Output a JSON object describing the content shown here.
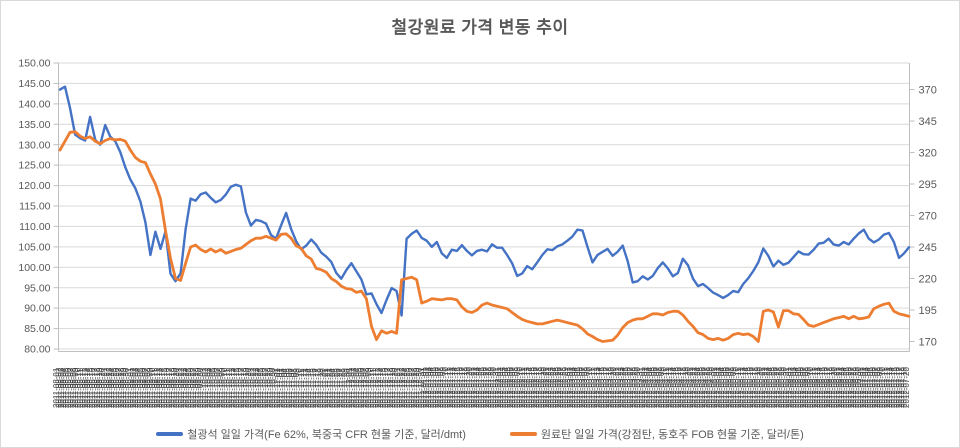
{
  "chart_data": {
    "type": "line",
    "title": "철강원료 가격 변동 추이",
    "legend_position": "bottom",
    "grid": "horizontal-only",
    "colors": {
      "gridline": "#d9d9d9",
      "axis_line": "#bfbfbf",
      "axis_text": "#595959",
      "x_label_band": "#3f3f3f",
      "series_iron_ore": "#4472c4",
      "series_coking_coal": "#ed7d31"
    },
    "left_axis": {
      "min": 80,
      "max": 150,
      "step": 5,
      "tick_labels": [
        "150.00",
        "145.00",
        "140.00",
        "135.00",
        "130.00",
        "125.00",
        "120.00",
        "115.00",
        "110.00",
        "105.00",
        "100.00",
        "95.00",
        "90.00",
        "85.00",
        "80.00"
      ]
    },
    "right_axis": {
      "min": 170,
      "max": 370,
      "step": 25,
      "tick_labels": [
        "370",
        "345",
        "320",
        "295",
        "270",
        "245",
        "220",
        "195",
        "170"
      ]
    },
    "x_axis": {
      "labels_legible": false,
      "style": "daily date labels rotated 90°, heavily overlapping into a dark band",
      "approx_label_count": 355,
      "assumed_start_date": "2011-08-01",
      "assumed_interval_days": 1
    },
    "series": [
      {
        "name": "철광석 일일 가격(Fe 62%, 북중국 CFR 현물 기준, 달러/dmt)",
        "axis": "left",
        "color": "#4472c4",
        "values": [
          143.5,
          144.2,
          139,
          132.5,
          131.6,
          131,
          136.8,
          131.2,
          130,
          134.8,
          132,
          130.8,
          128.2,
          124.5,
          121.5,
          119.3,
          116.1,
          111,
          103,
          108.7,
          104.5,
          108.8,
          98.4,
          96.6,
          98.5,
          109.3,
          116.8,
          116.3,
          117.9,
          118.3,
          117,
          115.9,
          116.5,
          117.8,
          119.7,
          120.2,
          119.8,
          113.4,
          110.2,
          111.6,
          111.3,
          110.7,
          107.9,
          107,
          110.2,
          113.3,
          109.4,
          106.4,
          104.4,
          105.3,
          106.8,
          105.5,
          103.6,
          102.6,
          101.3,
          98.6,
          97.2,
          99.3,
          101,
          99,
          97,
          93.4,
          93.6,
          91,
          88.8,
          92,
          94.9,
          94.2,
          88.2,
          107,
          108.2,
          109,
          107.2,
          106.5,
          105,
          106.2,
          103.4,
          102.3,
          104.3,
          104,
          105.4,
          104,
          102.9,
          104,
          104.3,
          103.9,
          105.6,
          104.8,
          104.8,
          103,
          101,
          97.9,
          98.5,
          100.3,
          99.5,
          101.2,
          103,
          104.4,
          104.2,
          105.1,
          105.6,
          106.5,
          107.5,
          109.2,
          109,
          105,
          101.2,
          103,
          103.8,
          104.5,
          102.8,
          103.8,
          105.3,
          101.5,
          96.3,
          96.6,
          97.8,
          97,
          97.9,
          99.8,
          101.2,
          99.7,
          97.8,
          98.6,
          102.1,
          100.5,
          97.2,
          95.4,
          95.9,
          94.9,
          93.8,
          93.2,
          92.5,
          93.2,
          94.2,
          93.9,
          95.9,
          97.3,
          99.1,
          101.2,
          104.6,
          102.8,
          100.2,
          101.6,
          100.6,
          101.1,
          102.5,
          103.9,
          103.2,
          103.1,
          104.3,
          105.8,
          106,
          107,
          105.6,
          105.3,
          106.2,
          105.6,
          107,
          108.3,
          109.2,
          107,
          106.1,
          106.8,
          108,
          108.4,
          106.2,
          102.3,
          103.4,
          104.9
        ]
      },
      {
        "name": "원료탄 일일 가격(강점탄, 동호주 FOB 현물 기준, 달러/톤)",
        "axis": "right",
        "color": "#ed7d31",
        "values": [
          322,
          329,
          336,
          336.5,
          333,
          331,
          332.5,
          329,
          327,
          329.5,
          331,
          330,
          330.5,
          329,
          322,
          316,
          313,
          312,
          303,
          295,
          283,
          258,
          236,
          220,
          218.5,
          232,
          245,
          246.5,
          243,
          241,
          243.5,
          241,
          243,
          240,
          241.5,
          243,
          244,
          247,
          250,
          252,
          252,
          253.5,
          252,
          250.5,
          255,
          255.5,
          252,
          246,
          244,
          238,
          235.5,
          228,
          227,
          225,
          220,
          217.5,
          214,
          212,
          211.5,
          209,
          210,
          204,
          182,
          171.5,
          178.5,
          176.5,
          178,
          176.5,
          219,
          220,
          221,
          219,
          200.5,
          202,
          204,
          203.5,
          203,
          204,
          204,
          203,
          197.5,
          194,
          193,
          195,
          199,
          200.5,
          199,
          198,
          197,
          196,
          193,
          190,
          187.5,
          186,
          185,
          184,
          184,
          185,
          186,
          187,
          186,
          185,
          184,
          183,
          180,
          176,
          174,
          171.5,
          170,
          170.5,
          171,
          175,
          181,
          185,
          187,
          188,
          188,
          190,
          192,
          192,
          191,
          193,
          194,
          194,
          191,
          186,
          182,
          177,
          175.5,
          172.5,
          171.5,
          172.5,
          171,
          172.5,
          175.5,
          176.5,
          175.5,
          176,
          174,
          170,
          194,
          195,
          193.5,
          181.5,
          194.5,
          194.5,
          192,
          191.5,
          187.5,
          183,
          182,
          183.5,
          185,
          186.5,
          188,
          189,
          190,
          188,
          190,
          188,
          188.5,
          189.5,
          196,
          198,
          199.5,
          200.5,
          194,
          192,
          191,
          190
        ]
      }
    ]
  }
}
